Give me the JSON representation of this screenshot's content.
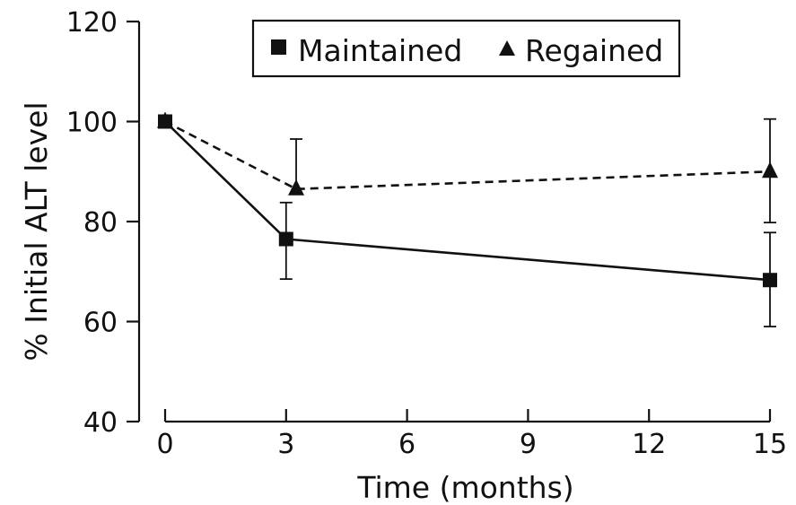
{
  "chart_data": {
    "type": "line",
    "xlabel": "Time (months)",
    "ylabel": "% Initial ALT level",
    "xlim": [
      0,
      15
    ],
    "ylim": [
      40,
      120
    ],
    "xticks": [
      0,
      3,
      6,
      9,
      12,
      15
    ],
    "yticks": [
      40,
      60,
      80,
      100,
      120
    ],
    "grid": false,
    "legend_position": "top",
    "series": [
      {
        "name": "Maintained",
        "marker": "square",
        "line_style": "solid",
        "x": [
          0,
          3,
          15
        ],
        "y": [
          100,
          76.5,
          68.3
        ],
        "err_low": [
          100,
          68.5,
          59
        ],
        "err_high": [
          100,
          83.8,
          77.8
        ]
      },
      {
        "name": "Regained",
        "marker": "triangle",
        "line_style": "dashed",
        "x": [
          0,
          3.25,
          15
        ],
        "y": [
          100,
          86.5,
          90
        ],
        "err_low": [
          100,
          86.5,
          79.8
        ],
        "err_high": [
          100,
          96.5,
          100.5
        ]
      }
    ]
  }
}
